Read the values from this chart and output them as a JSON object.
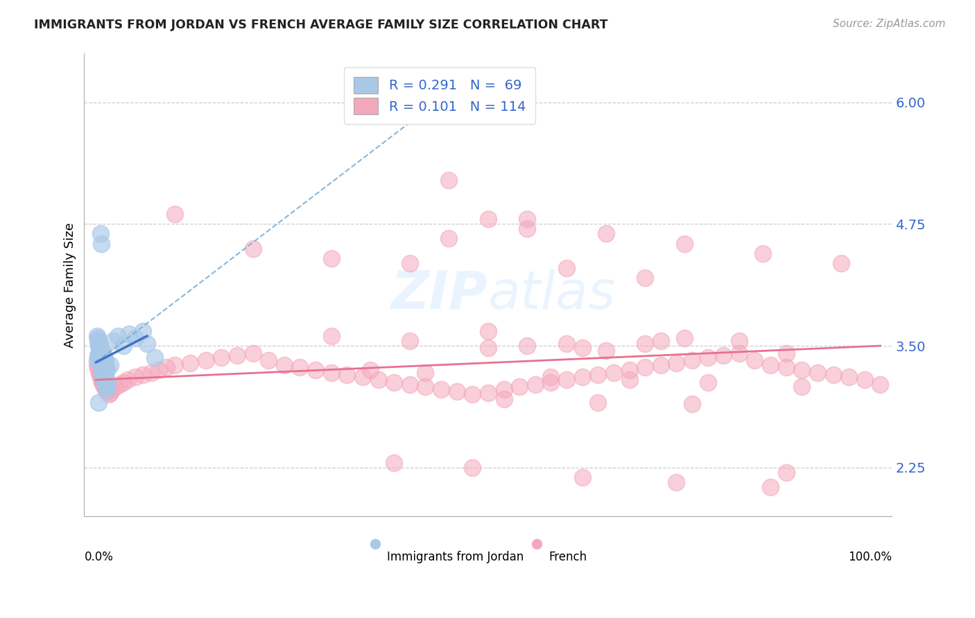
{
  "title": "IMMIGRANTS FROM JORDAN VS FRENCH AVERAGE FAMILY SIZE CORRELATION CHART",
  "source": "Source: ZipAtlas.com",
  "ylabel": "Average Family Size",
  "yticks": [
    2.25,
    3.5,
    4.75,
    6.0
  ],
  "jordan_color": "#a8c8e8",
  "french_color": "#f4a8bc",
  "jordan_line_color": "#4472c4",
  "french_line_color": "#e87090",
  "dashed_line_color": "#7ab0d8",
  "tick_color": "#3366cc",
  "jordan_x": [
    0.001,
    0.002,
    0.003,
    0.004,
    0.005,
    0.006,
    0.007,
    0.008,
    0.009,
    0.01,
    0.011,
    0.012,
    0.013,
    0.014,
    0.015,
    0.003,
    0.004,
    0.005,
    0.006,
    0.007,
    0.008,
    0.009,
    0.01,
    0.011,
    0.012,
    0.013,
    0.002,
    0.003,
    0.004,
    0.005,
    0.006,
    0.007,
    0.008,
    0.009,
    0.01,
    0.011,
    0.012,
    0.013,
    0.014,
    0.001,
    0.002,
    0.003,
    0.004,
    0.005,
    0.006,
    0.007,
    0.008,
    0.009,
    0.01,
    0.012,
    0.018,
    0.022,
    0.028,
    0.035,
    0.042,
    0.05,
    0.06,
    0.065,
    0.006,
    0.007,
    0.008,
    0.009,
    0.01,
    0.011,
    0.012,
    0.013,
    0.014,
    0.003,
    0.075
  ],
  "jordan_y": [
    3.35,
    3.4,
    3.38,
    3.42,
    3.36,
    3.33,
    3.3,
    3.28,
    3.25,
    3.22,
    3.2,
    3.18,
    3.15,
    3.12,
    3.1,
    3.5,
    3.48,
    3.45,
    3.43,
    3.4,
    3.38,
    3.35,
    3.32,
    3.3,
    3.28,
    3.25,
    3.55,
    3.52,
    3.5,
    3.48,
    3.45,
    3.43,
    3.4,
    3.38,
    3.35,
    3.32,
    3.3,
    3.28,
    3.25,
    3.6,
    3.58,
    3.55,
    3.52,
    3.5,
    3.48,
    3.45,
    3.43,
    3.4,
    3.38,
    3.35,
    3.3,
    3.55,
    3.6,
    3.5,
    3.62,
    3.58,
    3.65,
    3.52,
    4.65,
    4.55,
    3.2,
    3.18,
    3.15,
    3.12,
    3.1,
    3.08,
    3.05,
    2.92,
    3.38
  ],
  "french_x": [
    0.001,
    0.002,
    0.003,
    0.004,
    0.005,
    0.006,
    0.007,
    0.008,
    0.009,
    0.01,
    0.012,
    0.014,
    0.016,
    0.018,
    0.02,
    0.025,
    0.03,
    0.035,
    0.04,
    0.05,
    0.06,
    0.07,
    0.08,
    0.09,
    0.1,
    0.12,
    0.14,
    0.16,
    0.18,
    0.2,
    0.22,
    0.24,
    0.26,
    0.28,
    0.3,
    0.32,
    0.34,
    0.36,
    0.38,
    0.4,
    0.42,
    0.44,
    0.46,
    0.48,
    0.5,
    0.52,
    0.54,
    0.56,
    0.58,
    0.6,
    0.62,
    0.64,
    0.66,
    0.68,
    0.7,
    0.72,
    0.74,
    0.76,
    0.78,
    0.8,
    0.82,
    0.84,
    0.86,
    0.88,
    0.9,
    0.92,
    0.94,
    0.96,
    0.98,
    0.35,
    0.45,
    0.5,
    0.55,
    0.65,
    0.75,
    0.85,
    0.95,
    1.0,
    0.1,
    0.2,
    0.3,
    0.4,
    0.6,
    0.7,
    0.5,
    0.3,
    0.4,
    0.55,
    0.65,
    0.55,
    0.45,
    0.62,
    0.7,
    0.82,
    0.75,
    0.88,
    0.5,
    0.6,
    0.72,
    0.35,
    0.42,
    0.58,
    0.68,
    0.78,
    0.9,
    0.52,
    0.64,
    0.76,
    0.88,
    0.38,
    0.48,
    0.62,
    0.74,
    0.86
  ],
  "french_y": [
    3.3,
    3.28,
    3.25,
    3.22,
    3.2,
    3.18,
    3.15,
    3.12,
    3.1,
    3.08,
    3.05,
    3.03,
    3.0,
    3.02,
    3.05,
    3.08,
    3.1,
    3.12,
    3.15,
    3.18,
    3.2,
    3.22,
    3.25,
    3.28,
    3.3,
    3.32,
    3.35,
    3.38,
    3.4,
    3.42,
    3.35,
    3.3,
    3.28,
    3.25,
    3.22,
    3.2,
    3.18,
    3.15,
    3.12,
    3.1,
    3.08,
    3.05,
    3.03,
    3.0,
    3.02,
    3.05,
    3.08,
    3.1,
    3.12,
    3.15,
    3.18,
    3.2,
    3.22,
    3.25,
    3.28,
    3.3,
    3.32,
    3.35,
    3.38,
    3.4,
    3.42,
    3.35,
    3.3,
    3.28,
    3.25,
    3.22,
    3.2,
    3.18,
    3.15,
    5.9,
    5.2,
    4.8,
    4.8,
    4.65,
    4.55,
    4.45,
    4.35,
    3.1,
    4.85,
    4.5,
    4.4,
    4.35,
    4.3,
    4.2,
    3.65,
    3.6,
    3.55,
    3.5,
    3.45,
    4.7,
    4.6,
    3.48,
    3.52,
    3.55,
    3.58,
    3.42,
    3.48,
    3.52,
    3.55,
    3.25,
    3.22,
    3.18,
    3.15,
    3.12,
    3.08,
    2.95,
    2.92,
    2.9,
    2.2,
    2.3,
    2.25,
    2.15,
    2.1,
    2.05
  ]
}
